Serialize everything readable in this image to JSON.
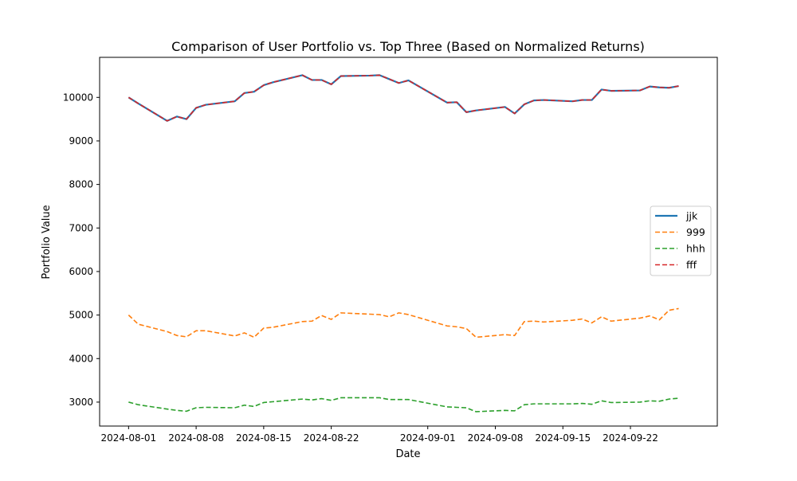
{
  "chart_data": {
    "type": "line",
    "title": "Comparison of User Portfolio vs. Top Three (Based on Normalized Returns)",
    "xlabel": "Date",
    "ylabel": "Portfolio Value",
    "x_tick_labels": [
      "2024-08-01",
      "2024-08-08",
      "2024-08-15",
      "2024-08-22",
      "2024-09-01",
      "2024-09-08",
      "2024-09-15",
      "2024-09-22"
    ],
    "y_tick_labels": [
      "3000",
      "4000",
      "5000",
      "6000",
      "7000",
      "8000",
      "9000",
      "10000"
    ],
    "x_range": [
      "2024-07-29",
      "2024-10-01"
    ],
    "ylim": [
      2450,
      10920
    ],
    "grid": false,
    "legend_position": "center-right",
    "x": [
      "2024-08-01",
      "2024-08-02",
      "2024-08-05",
      "2024-08-06",
      "2024-08-07",
      "2024-08-08",
      "2024-08-09",
      "2024-08-12",
      "2024-08-13",
      "2024-08-14",
      "2024-08-15",
      "2024-08-16",
      "2024-08-19",
      "2024-08-20",
      "2024-08-21",
      "2024-08-22",
      "2024-08-23",
      "2024-08-26",
      "2024-08-27",
      "2024-08-28",
      "2024-08-29",
      "2024-08-30",
      "2024-09-03",
      "2024-09-04",
      "2024-09-05",
      "2024-09-06",
      "2024-09-09",
      "2024-09-10",
      "2024-09-11",
      "2024-09-12",
      "2024-09-13",
      "2024-09-16",
      "2024-09-17",
      "2024-09-18",
      "2024-09-19",
      "2024-09-20",
      "2024-09-23",
      "2024-09-24",
      "2024-09-25",
      "2024-09-26",
      "2024-09-27"
    ],
    "series": [
      {
        "name": "jjk",
        "color": "#1f77b4",
        "style": "solid",
        "values": [
          10000,
          9860,
          9460,
          9560,
          9500,
          9760,
          9830,
          9910,
          10100,
          10130,
          10280,
          10350,
          10510,
          10400,
          10400,
          10300,
          10490,
          10500,
          10510,
          10420,
          10330,
          10390,
          9880,
          9890,
          9660,
          9700,
          9780,
          9630,
          9840,
          9930,
          9940,
          9910,
          9940,
          9940,
          10180,
          10150,
          10160,
          10250,
          10230,
          10220,
          10260
        ]
      },
      {
        "name": "999",
        "color": "#ff7f0e",
        "style": "dashed",
        "values": [
          5000,
          4790,
          4620,
          4530,
          4500,
          4640,
          4640,
          4520,
          4590,
          4490,
          4700,
          4720,
          4850,
          4860,
          4990,
          4900,
          5050,
          5020,
          5010,
          4960,
          5050,
          5010,
          4750,
          4730,
          4690,
          4490,
          4550,
          4530,
          4850,
          4860,
          4840,
          4880,
          4910,
          4820,
          4960,
          4860,
          4930,
          4980,
          4890,
          5110,
          5150
        ]
      },
      {
        "name": "hhh",
        "color": "#2ca02c",
        "style": "dashed",
        "values": [
          3000,
          2940,
          2840,
          2810,
          2790,
          2870,
          2880,
          2870,
          2930,
          2900,
          2990,
          3010,
          3070,
          3050,
          3080,
          3040,
          3100,
          3100,
          3100,
          3060,
          3060,
          3060,
          2890,
          2880,
          2870,
          2780,
          2810,
          2800,
          2940,
          2960,
          2960,
          2960,
          2970,
          2950,
          3030,
          2990,
          3000,
          3030,
          3020,
          3070,
          3090
        ]
      },
      {
        "name": "fff",
        "color": "#d62728",
        "style": "dashed",
        "values": [
          10000,
          9860,
          9460,
          9560,
          9500,
          9760,
          9830,
          9910,
          10100,
          10130,
          10280,
          10350,
          10510,
          10400,
          10400,
          10300,
          10490,
          10500,
          10510,
          10420,
          10330,
          10390,
          9880,
          9890,
          9660,
          9700,
          9780,
          9630,
          9840,
          9930,
          9940,
          9910,
          9940,
          9940,
          10180,
          10150,
          10160,
          10250,
          10230,
          10220,
          10260
        ]
      }
    ]
  }
}
